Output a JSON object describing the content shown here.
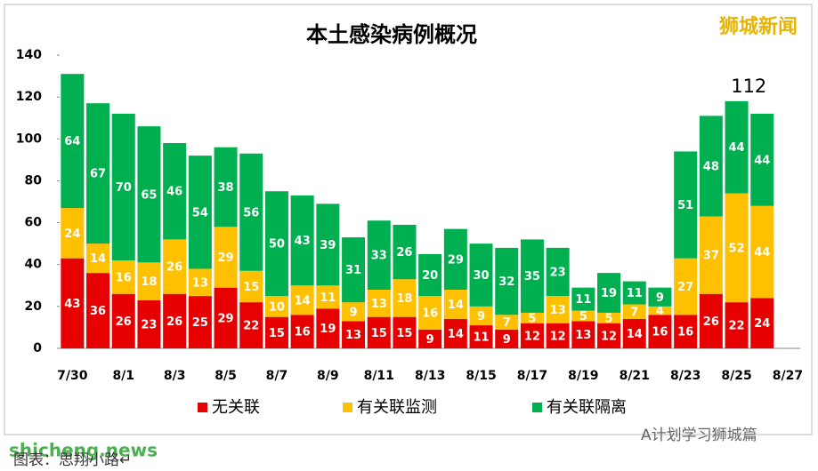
{
  "chart_data": {
    "type": "stacked_bar",
    "title": "本土感染病例概况",
    "categories": [
      "7/30",
      null,
      "8/1",
      null,
      "8/3",
      null,
      "8/5",
      null,
      "8/7",
      null,
      "8/9",
      null,
      "8/11",
      null,
      "8/13",
      null,
      "8/15",
      null,
      "8/17",
      null,
      "8/19",
      null,
      "8/21",
      null,
      "8/23",
      null,
      "8/25",
      null,
      "8/27"
    ],
    "series": [
      {
        "name": "无关联",
        "color": "#e60000",
        "values": [
          43,
          36,
          26,
          23,
          26,
          25,
          29,
          22,
          15,
          16,
          19,
          13,
          15,
          15,
          9,
          14,
          11,
          9,
          12,
          12,
          13,
          12,
          14,
          16,
          16,
          26,
          22,
          24,
          null
        ]
      },
      {
        "name": "有关联监测",
        "color": "#ffc000",
        "values": [
          24,
          14,
          16,
          18,
          26,
          13,
          29,
          15,
          10,
          14,
          11,
          9,
          13,
          18,
          16,
          14,
          9,
          7,
          5,
          13,
          5,
          5,
          7,
          4,
          27,
          37,
          52,
          44,
          null
        ]
      },
      {
        "name": "有关联隔离",
        "color": "#00b050",
        "values": [
          64,
          67,
          70,
          65,
          46,
          54,
          38,
          56,
          50,
          43,
          39,
          31,
          33,
          26,
          20,
          29,
          30,
          32,
          35,
          23,
          11,
          19,
          11,
          9,
          51,
          48,
          44,
          44,
          null
        ]
      }
    ],
    "ylim": [
      0,
      140
    ],
    "yticks": [
      0,
      20,
      40,
      60,
      80,
      100,
      120,
      140
    ],
    "annotations": {
      "last_total": "112",
      "watermark": "狮城新闻",
      "site": "shicheng.news",
      "credit": "图表：思翔小路↵",
      "account": "A计划学习狮城篇"
    }
  }
}
